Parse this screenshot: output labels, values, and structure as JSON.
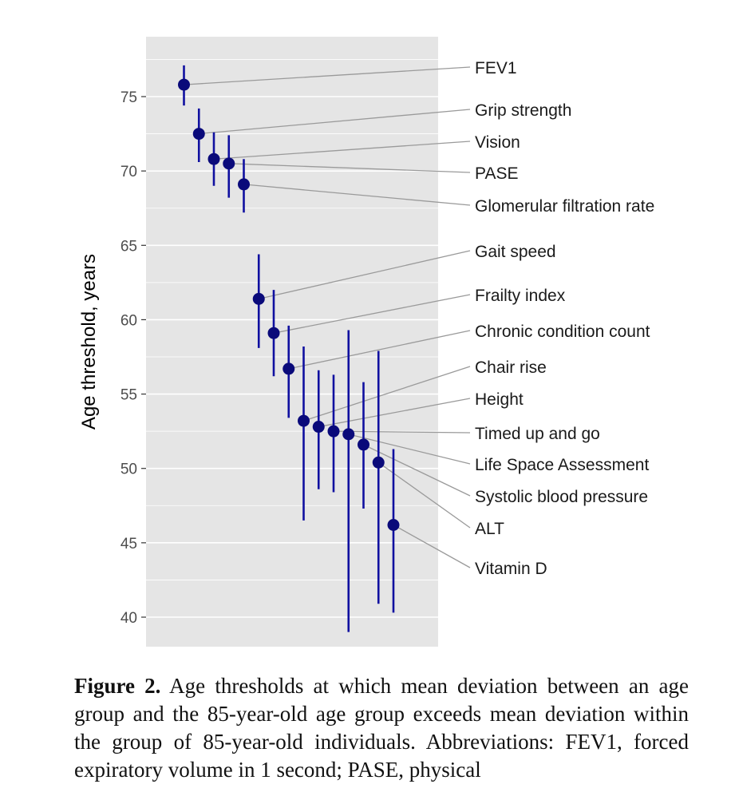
{
  "chart_data": {
    "type": "scatter",
    "title": "",
    "xlabel": "",
    "ylabel": "Age threshold, years",
    "ylim": [
      38,
      80
    ],
    "yticks": [
      40,
      45,
      50,
      55,
      60,
      65,
      70,
      75
    ],
    "grid": true,
    "legend": "none",
    "colors": {
      "point": "#0a0a7a",
      "errorbar": "#1010a0",
      "panel": "#e5e5e5",
      "grid": "#ffffff",
      "leader": "#9a9a9a"
    },
    "points": [
      {
        "label": "FEV1",
        "y": 75.8,
        "lower": 74.4,
        "upper": 77.1
      },
      {
        "label": "Grip strength",
        "y": 72.5,
        "lower": 70.6,
        "upper": 74.2
      },
      {
        "label": "Vision",
        "y": 70.8,
        "lower": 69.0,
        "upper": 72.6
      },
      {
        "label": "PASE",
        "y": 70.5,
        "lower": 68.2,
        "upper": 72.4
      },
      {
        "label": "Glomerular filtration rate",
        "y": 69.1,
        "lower": 67.2,
        "upper": 70.8
      },
      {
        "label": "Gait speed",
        "y": 61.4,
        "lower": 58.1,
        "upper": 64.4
      },
      {
        "label": "Frailty index",
        "y": 59.1,
        "lower": 56.2,
        "upper": 62.0
      },
      {
        "label": "Chronic condition count",
        "y": 56.7,
        "lower": 53.4,
        "upper": 59.6
      },
      {
        "label": "Chair rise",
        "y": 53.2,
        "lower": 46.5,
        "upper": 58.2
      },
      {
        "label": "Height",
        "y": 52.8,
        "lower": 48.6,
        "upper": 56.6
      },
      {
        "label": "Timed up and go",
        "y": 52.5,
        "lower": 48.4,
        "upper": 56.3
      },
      {
        "label": "Life Space Assessment",
        "y": 52.3,
        "lower": 39.0,
        "upper": 59.3
      },
      {
        "label": "Systolic blood pressure",
        "y": 51.6,
        "lower": 47.3,
        "upper": 55.8
      },
      {
        "label": "ALT",
        "y": 50.4,
        "lower": 40.9,
        "upper": 57.9
      },
      {
        "label": "Vitamin D",
        "y": 46.2,
        "lower": 40.3,
        "upper": 51.3
      }
    ]
  },
  "caption": {
    "lead": "Figure 2.",
    "text": "Age thresholds at which mean deviation between an age group and the 85-year-old age group exceeds mean deviation within the group of 85-year-old individuals. Abbreviations: FEV1, forced expiratory volume in 1 second; PASE, physical"
  }
}
